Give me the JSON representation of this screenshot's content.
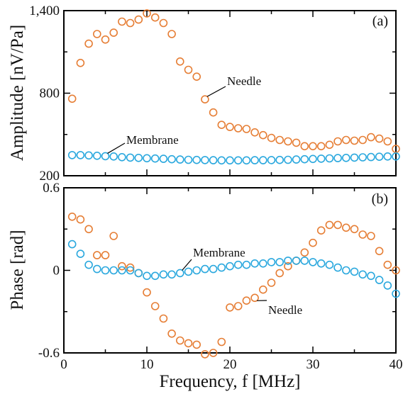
{
  "colors": {
    "needle": "#e67e35",
    "membrane": "#2aa8de"
  },
  "chart_data": [
    {
      "type": "scatter",
      "panel_label": "(a)",
      "ylabel": "Amplitude [nV/Pa]",
      "xlim": [
        0,
        40
      ],
      "ylim": [
        200,
        1400
      ],
      "y_tick_labels": [
        "200",
        "800",
        "1,400"
      ],
      "y_tick_values": [
        200,
        800,
        1400
      ],
      "y_minor_ticks": [
        500,
        1100
      ],
      "annotations": [
        {
          "text": "Needle",
          "series": 0,
          "target_x": 17
        },
        {
          "text": "Membrane",
          "series": 1,
          "target_x": 5
        }
      ],
      "series": [
        {
          "name": "Needle",
          "color": "#e67e35",
          "x": [
            1,
            2,
            3,
            4,
            5,
            6,
            7,
            8,
            9,
            10,
            11,
            12,
            13,
            14,
            15,
            16,
            17,
            18,
            19,
            20,
            21,
            22,
            23,
            24,
            25,
            26,
            27,
            28,
            29,
            30,
            31,
            32,
            33,
            34,
            35,
            36,
            37,
            38,
            39,
            40
          ],
          "y": [
            760,
            1020,
            1160,
            1230,
            1190,
            1240,
            1320,
            1310,
            1335,
            1380,
            1350,
            1310,
            1230,
            1030,
            970,
            920,
            755,
            660,
            570,
            555,
            545,
            540,
            515,
            495,
            475,
            460,
            450,
            440,
            415,
            415,
            415,
            425,
            450,
            460,
            455,
            460,
            480,
            470,
            450,
            395
          ]
        },
        {
          "name": "Membrane",
          "color": "#2aa8de",
          "x": [
            1,
            2,
            3,
            4,
            5,
            6,
            7,
            8,
            9,
            10,
            11,
            12,
            13,
            14,
            15,
            16,
            17,
            18,
            19,
            20,
            21,
            22,
            23,
            24,
            25,
            26,
            27,
            28,
            29,
            30,
            31,
            32,
            33,
            34,
            35,
            36,
            37,
            38,
            39,
            40
          ],
          "y": [
            350,
            350,
            348,
            345,
            342,
            340,
            335,
            332,
            330,
            327,
            325,
            323,
            320,
            318,
            316,
            315,
            314,
            313,
            312,
            312,
            312,
            312,
            313,
            313,
            314,
            315,
            316,
            318,
            320,
            322,
            324,
            326,
            328,
            330,
            332,
            334,
            336,
            338,
            340,
            340
          ]
        }
      ]
    },
    {
      "type": "scatter",
      "panel_label": "(b)",
      "ylabel": "Phase [rad]",
      "xlabel": "Frequency, f [MHz]",
      "xlim": [
        0,
        40
      ],
      "ylim": [
        -0.6,
        0.6
      ],
      "x_tick_labels": [
        "0",
        "10",
        "20",
        "30",
        "40"
      ],
      "x_tick_values": [
        0,
        10,
        20,
        30,
        40
      ],
      "x_minor_ticks": [
        5,
        15,
        25,
        35
      ],
      "y_tick_labels": [
        "-0.6",
        "0",
        "0.6"
      ],
      "y_tick_values": [
        -0.6,
        0,
        0.6
      ],
      "y_minor_ticks": [
        -0.3,
        0.3
      ],
      "annotations": [
        {
          "text": "Membrane",
          "series": 1,
          "target_x": 14
        },
        {
          "text": "Needle",
          "series": 0,
          "target_x": 23
        }
      ],
      "series": [
        {
          "name": "Needle",
          "color": "#e67e35",
          "x": [
            1,
            2,
            3,
            4,
            5,
            6,
            7,
            8,
            9,
            10,
            11,
            12,
            13,
            14,
            15,
            16,
            17,
            18,
            19,
            20,
            21,
            22,
            23,
            24,
            25,
            26,
            27,
            28,
            29,
            30,
            31,
            32,
            33,
            34,
            35,
            36,
            37,
            38,
            39,
            40
          ],
          "y": [
            0.39,
            0.37,
            0.3,
            0.11,
            0.11,
            0.25,
            0.03,
            0.02,
            -0.02,
            -0.16,
            -0.26,
            -0.35,
            -0.46,
            -0.51,
            -0.53,
            -0.54,
            -0.61,
            -0.6,
            -0.52,
            -0.27,
            -0.26,
            -0.22,
            -0.2,
            -0.14,
            -0.09,
            -0.02,
            0.03,
            0.07,
            0.13,
            0.2,
            0.29,
            0.33,
            0.33,
            0.31,
            0.3,
            0.26,
            0.25,
            0.14,
            0.04,
            0.0
          ]
        },
        {
          "name": "Membrane",
          "color": "#2aa8de",
          "x": [
            1,
            2,
            3,
            4,
            5,
            6,
            7,
            8,
            9,
            10,
            11,
            12,
            13,
            14,
            15,
            16,
            17,
            18,
            19,
            20,
            21,
            22,
            23,
            24,
            25,
            26,
            27,
            28,
            29,
            30,
            31,
            32,
            33,
            34,
            35,
            36,
            37,
            38,
            39,
            40
          ],
          "y": [
            0.19,
            0.12,
            0.04,
            0.01,
            0.0,
            0.0,
            0.0,
            0.0,
            -0.02,
            -0.04,
            -0.04,
            -0.03,
            -0.03,
            -0.02,
            -0.01,
            0.0,
            0.01,
            0.01,
            0.02,
            0.03,
            0.04,
            0.04,
            0.05,
            0.05,
            0.06,
            0.06,
            0.07,
            0.07,
            0.07,
            0.06,
            0.05,
            0.04,
            0.02,
            0.0,
            -0.01,
            -0.03,
            -0.04,
            -0.07,
            -0.11,
            -0.17
          ]
        }
      ]
    }
  ]
}
